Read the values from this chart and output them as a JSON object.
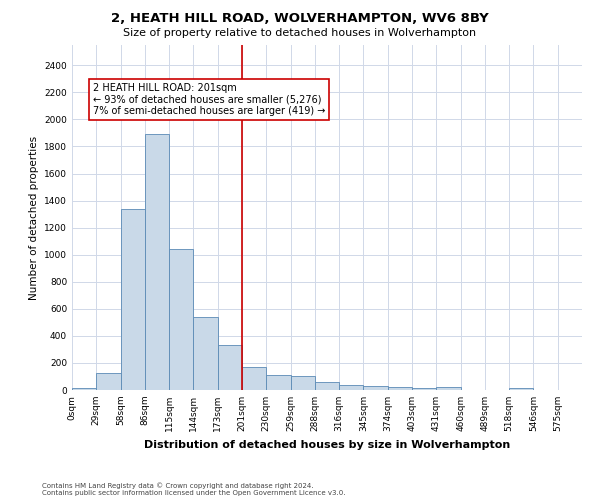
{
  "title": "2, HEATH HILL ROAD, WOLVERHAMPTON, WV6 8BY",
  "subtitle": "Size of property relative to detached houses in Wolverhampton",
  "xlabel": "Distribution of detached houses by size in Wolverhampton",
  "ylabel": "Number of detached properties",
  "bar_values": [
    15,
    125,
    1340,
    1890,
    1040,
    540,
    335,
    170,
    110,
    100,
    60,
    38,
    30,
    25,
    18,
    25,
    0,
    0,
    18,
    0
  ],
  "bar_labels": [
    "0sqm",
    "29sqm",
    "58sqm",
    "86sqm",
    "115sqm",
    "144sqm",
    "173sqm",
    "201sqm",
    "230sqm",
    "259sqm",
    "288sqm",
    "316sqm",
    "345sqm",
    "374sqm",
    "403sqm",
    "431sqm",
    "460sqm",
    "489sqm",
    "518sqm",
    "546sqm",
    "575sqm"
  ],
  "bar_color": "#c9d9e8",
  "bar_edge_color": "#5a8ab5",
  "vline_color": "#cc0000",
  "annotation_text": "2 HEATH HILL ROAD: 201sqm\n← 93% of detached houses are smaller (5,276)\n7% of semi-detached houses are larger (419) →",
  "annotation_box_color": "white",
  "annotation_box_edge_color": "#cc0000",
  "ylim": [
    0,
    2550
  ],
  "yticks": [
    0,
    200,
    400,
    600,
    800,
    1000,
    1200,
    1400,
    1600,
    1800,
    2000,
    2200,
    2400
  ],
  "grid_color": "#d0d8e8",
  "background_color": "white",
  "footnote1": "Contains HM Land Registry data © Crown copyright and database right 2024.",
  "footnote2": "Contains public sector information licensed under the Open Government Licence v3.0.",
  "title_fontsize": 9.5,
  "subtitle_fontsize": 8,
  "xlabel_fontsize": 8,
  "ylabel_fontsize": 7.5,
  "annotation_fontsize": 7,
  "tick_fontsize": 6.5,
  "footnote_fontsize": 5
}
